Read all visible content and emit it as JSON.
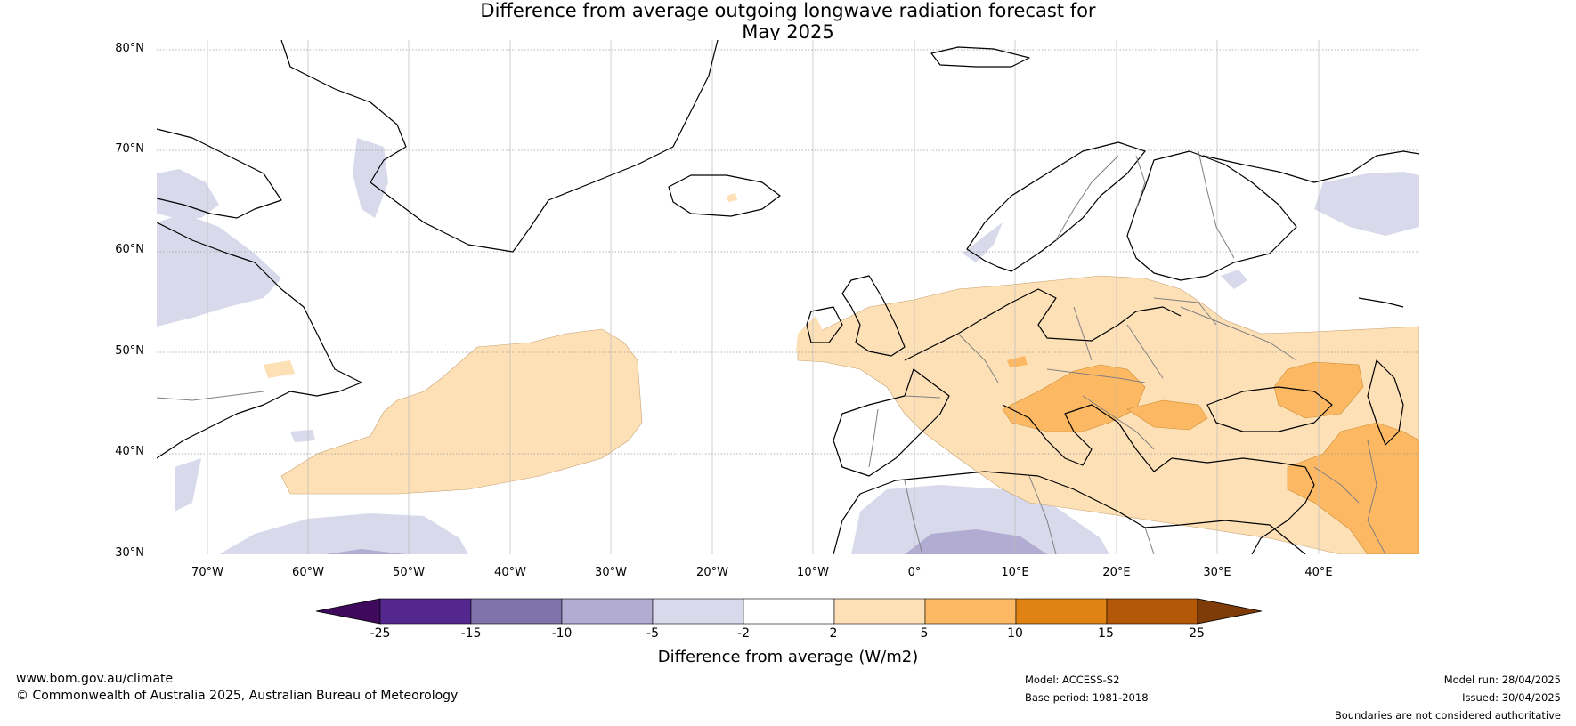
{
  "title": {
    "line1": "Difference from average outgoing longwave radiation forecast for",
    "line2": "May 2025"
  },
  "map": {
    "lat_labels": [
      "80°N",
      "70°N",
      "60°N",
      "50°N",
      "40°N",
      "30°N"
    ],
    "lon_labels": [
      "70°W",
      "60°W",
      "50°W",
      "40°W",
      "30°W",
      "20°W",
      "10°W",
      "0°",
      "10°E",
      "20°E",
      "30°E",
      "40°E"
    ],
    "lat_range": [
      30,
      81
    ],
    "lon_range": [
      -75,
      50
    ],
    "land_color": "#ffffff",
    "coast_color": "#000000",
    "border_color": "#808080"
  },
  "colorbar": {
    "title": "Difference from average (W/m2)",
    "tick_labels": [
      "-25",
      "-15",
      "-10",
      "-5",
      "-2",
      "2",
      "5",
      "10",
      "15",
      "25"
    ],
    "colors": [
      "#3f0a5c",
      "#54278f",
      "#8073ac",
      "#b2abd2",
      "#d8daeb",
      "#ffffff",
      "#fee0b6",
      "#fdb863",
      "#e08214",
      "#b35806",
      "#7f3b08"
    ]
  },
  "footer": {
    "website": "www.bom.gov.au/climate",
    "copyright": "© Commonwealth of Australia 2025, Australian Bureau of Meteorology",
    "model": "Model: ACCESS-S2",
    "base_period": "Base period: 1981-2018",
    "model_run": "Model run: 28/04/2025",
    "issued": "Issued: 30/04/2025",
    "disclaimer": "Boundaries are not considered authoritative"
  }
}
